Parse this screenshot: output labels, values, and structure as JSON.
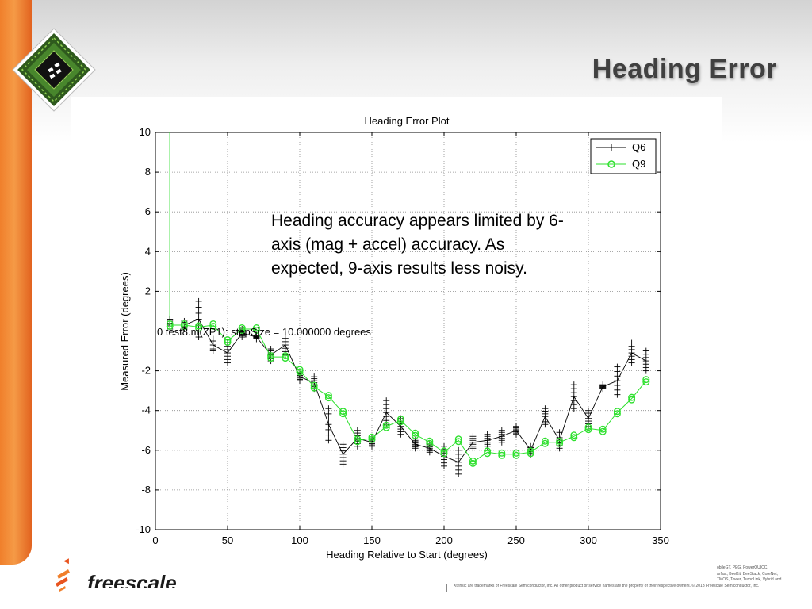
{
  "slide": {
    "title": "Heading Error",
    "brand_name": "freescale",
    "footer_disclaimer": "Xtrinsic are trademarks of Freescale Semiconductor, Inc. All other product or service names are the property of their respective owners. © 2013 Freescale Semiconductor, Inc.",
    "trademark_lines": [
      "obileGT, PEG, PowerQUICC,",
      "arfast, BeeKit, BeeStack, CoreNet,",
      "TMOS, Tower, TurboLink, Vybrid and"
    ],
    "accent_color": "#f07f2b"
  },
  "chart_data": {
    "type": "line",
    "title": "Heading Error Plot",
    "xlabel": "Heading Relative to Start (degrees)",
    "ylabel": "Measured Error (degrees)",
    "xlim": [
      0,
      350
    ],
    "ylim": [
      -10,
      10
    ],
    "xticks": [
      0,
      50,
      100,
      150,
      200,
      250,
      300,
      350
    ],
    "yticks": [
      -10,
      -8,
      -6,
      -4,
      -2,
      0,
      2,
      4,
      6,
      8,
      10
    ],
    "grid": true,
    "legend_position": "top-right",
    "series": [
      {
        "name": "Q6",
        "color": "#000000",
        "marker": "plus",
        "x": [
          10,
          20,
          30,
          40,
          50,
          60,
          70,
          80,
          90,
          100,
          110,
          120,
          130,
          140,
          150,
          160,
          170,
          180,
          190,
          200,
          210,
          220,
          230,
          240,
          250,
          260,
          270,
          280,
          290,
          300,
          310,
          320,
          330,
          340
        ],
        "y": [
          0.3,
          0.3,
          0.6,
          -0.7,
          -1.1,
          -0.1,
          -0.3,
          -1.2,
          -0.7,
          -2.3,
          -2.6,
          -4.7,
          -6.2,
          -5.4,
          -5.6,
          -4.1,
          -4.8,
          -5.7,
          -5.9,
          -6.3,
          -6.6,
          -5.6,
          -5.5,
          -5.3,
          -5.0,
          -6.0,
          -4.3,
          -5.5,
          -3.3,
          -4.4,
          -2.8,
          -2.5,
          -1.1,
          -1.5
        ],
        "spread": [
          0.3,
          0.2,
          0.9,
          0.3,
          0.5,
          0.2,
          0.1,
          0.3,
          0.5,
          0.2,
          0.3,
          0.8,
          0.5,
          0.4,
          0.2,
          0.6,
          0.4,
          0.2,
          0.2,
          0.5,
          0.6,
          0.3,
          0.3,
          0.3,
          0.2,
          0.2,
          0.4,
          0.4,
          0.6,
          0.4,
          0.1,
          0.7,
          0.5,
          0.5
        ]
      },
      {
        "name": "Q9",
        "color": "#2ee02e",
        "marker": "circle",
        "x": [
          10,
          20,
          30,
          40,
          50,
          60,
          70,
          80,
          90,
          100,
          110,
          120,
          130,
          140,
          150,
          160,
          170,
          180,
          190,
          200,
          210,
          220,
          230,
          240,
          250,
          260,
          270,
          280,
          290,
          300,
          310,
          320,
          330,
          340
        ],
        "y": [
          0.3,
          0.3,
          0.2,
          0.3,
          -0.5,
          0.1,
          0.1,
          -1.3,
          -1.3,
          -2.0,
          -2.8,
          -3.3,
          -4.1,
          -5.5,
          -5.4,
          -4.8,
          -4.5,
          -5.2,
          -5.6,
          -6.1,
          -5.5,
          -6.6,
          -6.1,
          -6.2,
          -6.2,
          -6.1,
          -5.6,
          -5.6,
          -5.3,
          -4.9,
          -5.0,
          -4.1,
          -3.4,
          -2.5
        ]
      }
    ],
    "initial_spike": {
      "x": 10,
      "from_y": 0.3,
      "to_y": 10
    },
    "annotations": [
      "Heading accuracy appears limited by 6-axis (mag + accel) accuracy.  As expected, 9-axis results less noisy.",
      "0 test8.m(ZP1): stepSize = 10.000000 degrees"
    ]
  }
}
